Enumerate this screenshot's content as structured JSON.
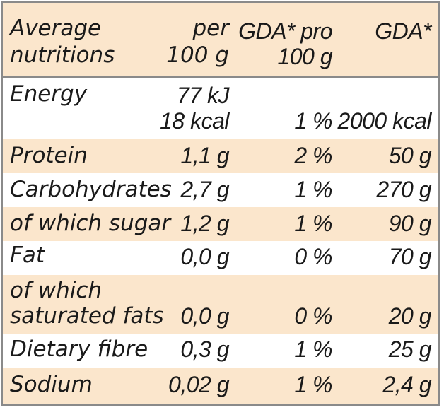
{
  "header": {
    "col_label_line1": "Average",
    "col_label_line2": "nutritions",
    "col_per_line1": "per",
    "col_per_line2": "100 g",
    "col_gda_pro_line1": "GDA* pro",
    "col_gda_pro_line2": "100 g",
    "col_gda": "GDA*"
  },
  "rows": [
    {
      "label": "Energy",
      "per_line1": "77 kJ",
      "per_line2": "18 kcal",
      "gda_pct": "1 %",
      "gda": "2000 kcal"
    },
    {
      "label": "Protein",
      "per": "1,1 g",
      "gda_pct": "2 %",
      "gda": "50 g"
    },
    {
      "label": "Carbohydrates",
      "per": "2,7 g",
      "gda_pct": "1 %",
      "gda": "270 g"
    },
    {
      "label": "of which sugar",
      "per": "1,2 g",
      "gda_pct": "1 %",
      "gda": "90 g"
    },
    {
      "label": "Fat",
      "per": "0,0 g",
      "gda_pct": "0 %",
      "gda": "70 g"
    },
    {
      "label_line1": "of which",
      "label_line2": "saturated fats",
      "per": "0,0 g",
      "gda_pct": "0 %",
      "gda": "20 g"
    },
    {
      "label": "Dietary fibre",
      "per": "0,3 g",
      "gda_pct": "1 %",
      "gda": "25 g"
    },
    {
      "label": "Sodium",
      "per": "0,02 g",
      "gda_pct": "1 %",
      "gda": "2,4 g"
    }
  ],
  "colors": {
    "shade": "#fbe6cc",
    "border": "#8a8a8a",
    "text": "#1a1a1a"
  }
}
